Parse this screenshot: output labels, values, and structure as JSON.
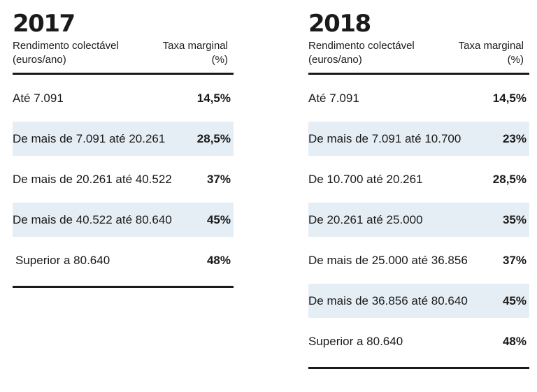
{
  "chart_data": [
    {
      "type": "table",
      "title": "2017",
      "columns": [
        "Rendimento colectável (euros/ano)",
        "Taxa marginal (%)"
      ],
      "rows": [
        {
          "bracket": "Até 7.091",
          "rate": "14,5%"
        },
        {
          "bracket": "De mais de 7.091 até 20.261",
          "rate": "28,5%"
        },
        {
          "bracket": "De mais de 20.261 até 40.522",
          "rate": "37%"
        },
        {
          "bracket": "De mais de 40.522 até 80.640",
          "rate": "45%"
        },
        {
          "bracket": "Superior a 80.640",
          "rate": "48%"
        }
      ]
    },
    {
      "type": "table",
      "title": "2018",
      "columns": [
        "Rendimento colectável (euros/ano)",
        "Taxa marginal (%)"
      ],
      "rows": [
        {
          "bracket": "Até 7.091",
          "rate": "14,5%"
        },
        {
          "bracket": "De mais de 7.091 até 10.700",
          "rate": "23%"
        },
        {
          "bracket": "De 10.700 até 20.261",
          "rate": "28,5%"
        },
        {
          "bracket": "De 20.261 até 25.000",
          "rate": "35%"
        },
        {
          "bracket": "De mais de 25.000 até 36.856",
          "rate": "37%"
        },
        {
          "bracket": "De mais de 36.856 até 80.640",
          "rate": "45%"
        },
        {
          "bracket": "Superior a 80.640",
          "rate": "48%"
        }
      ]
    }
  ],
  "header": {
    "income_line1": "Rendimento colectável",
    "income_line2": "(euros/ano)",
    "rate_line1": "Taxa marginal",
    "rate_line2": "(%)"
  },
  "colors": {
    "shade": "#e5eef5",
    "text": "#1a1a1a"
  }
}
